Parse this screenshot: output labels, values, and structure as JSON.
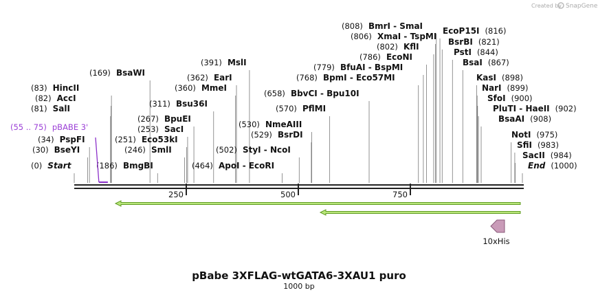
{
  "header": {
    "credit": "Created by",
    "brand": "SnapGene"
  },
  "sites": [
    {
      "position": 0,
      "label": "(0)",
      "name": "Start",
      "side": "left",
      "kind": "end"
    },
    {
      "position": 30,
      "label": "(30)",
      "name": "BseYI",
      "side": "left"
    },
    {
      "position": 34,
      "label": "(34)",
      "name": "PspFI",
      "side": "left"
    },
    {
      "position": 81,
      "label": "(81)",
      "name": "SalI",
      "side": "left"
    },
    {
      "position": 82,
      "label": "(82)",
      "name": "AccI",
      "side": "left"
    },
    {
      "position": 83,
      "label": "(83)",
      "name": "HincII",
      "side": "left"
    },
    {
      "position": 169,
      "label": "(169)",
      "name": "BsaWI",
      "side": "left"
    },
    {
      "position": 186,
      "label": "(186)",
      "name": "BmgBI",
      "side": "left"
    },
    {
      "position": 246,
      "label": "(246)",
      "name": "SmlI",
      "side": "left"
    },
    {
      "position": 251,
      "label": "(251)",
      "name": "Eco53kI",
      "side": "left"
    },
    {
      "position": 253,
      "label": "(253)",
      "name": "SacI",
      "side": "left"
    },
    {
      "position": 267,
      "label": "(267)",
      "name": "BpuEI",
      "side": "left"
    },
    {
      "position": 311,
      "label": "(311)",
      "name": "Bsu36I",
      "side": "left"
    },
    {
      "position": 360,
      "label": "(360)",
      "name": "MmeI",
      "side": "left"
    },
    {
      "position": 362,
      "label": "(362)",
      "name": "EarI",
      "side": "left"
    },
    {
      "position": 391,
      "label": "(391)",
      "name": "MslI",
      "side": "left"
    },
    {
      "position": 464,
      "label": "(464)",
      "name": "ApoI  - EcoRI",
      "side": "left"
    },
    {
      "position": 502,
      "label": "(502)",
      "name": "StyI  - NcoI",
      "side": "left"
    },
    {
      "position": 529,
      "label": "(529)",
      "name": "BsrDI",
      "side": "left"
    },
    {
      "position": 530,
      "label": "(530)",
      "name": "NmeAIII",
      "side": "left"
    },
    {
      "position": 570,
      "label": "(570)",
      "name": "PflMI",
      "side": "left"
    },
    {
      "position": 658,
      "label": "(658)",
      "name": "BbvCI  - Bpu10I",
      "side": "left"
    },
    {
      "position": 768,
      "label": "(768)",
      "name": "BpmI  - Eco57MI",
      "side": "left"
    },
    {
      "position": 779,
      "label": "(779)",
      "name": "BfuAI  - BspMI",
      "side": "left"
    },
    {
      "position": 786,
      "label": "(786)",
      "name": "EcoNI",
      "side": "left"
    },
    {
      "position": 802,
      "label": "(802)",
      "name": "KflI",
      "side": "left"
    },
    {
      "position": 806,
      "label": "(806)",
      "name": "XmaI  - TspMI",
      "side": "left"
    },
    {
      "position": 808,
      "label": "(808)",
      "name": "BmrI  - SmaI",
      "side": "left"
    },
    {
      "position": 816,
      "label": "(816)",
      "name": "EcoP15I",
      "side": "right"
    },
    {
      "position": 821,
      "label": "(821)",
      "name": "BsrBI",
      "side": "right"
    },
    {
      "position": 844,
      "label": "(844)",
      "name": "PstI",
      "side": "right"
    },
    {
      "position": 867,
      "label": "(867)",
      "name": "BsaI",
      "side": "right"
    },
    {
      "position": 898,
      "label": "(898)",
      "name": "KasI",
      "side": "right"
    },
    {
      "position": 899,
      "label": "(899)",
      "name": "NarI",
      "side": "right"
    },
    {
      "position": 900,
      "label": "(900)",
      "name": "SfoI",
      "side": "right"
    },
    {
      "position": 902,
      "label": "(902)",
      "name": "PluTI  - HaeII",
      "side": "right"
    },
    {
      "position": 908,
      "label": "(908)",
      "name": "BsaAI",
      "side": "right"
    },
    {
      "position": 975,
      "label": "(975)",
      "name": "NotI",
      "side": "right"
    },
    {
      "position": 983,
      "label": "(983)",
      "name": "SfiI",
      "side": "right"
    },
    {
      "position": 984,
      "label": "(984)",
      "name": "SacII",
      "side": "right"
    },
    {
      "position": 1000,
      "label": "(1000)",
      "name": "End",
      "side": "right",
      "kind": "end"
    }
  ],
  "primer": {
    "start": 55,
    "end": 75,
    "range": "(55 .. 75)",
    "name": "pBABE 3'"
  },
  "feature": {
    "name": "10xHis"
  },
  "ruler": {
    "ticks": [
      250,
      500,
      750
    ]
  },
  "title": "pBabe 3XFLAG-wtGATA6-3XAU1 puro",
  "length": "1000 bp"
}
